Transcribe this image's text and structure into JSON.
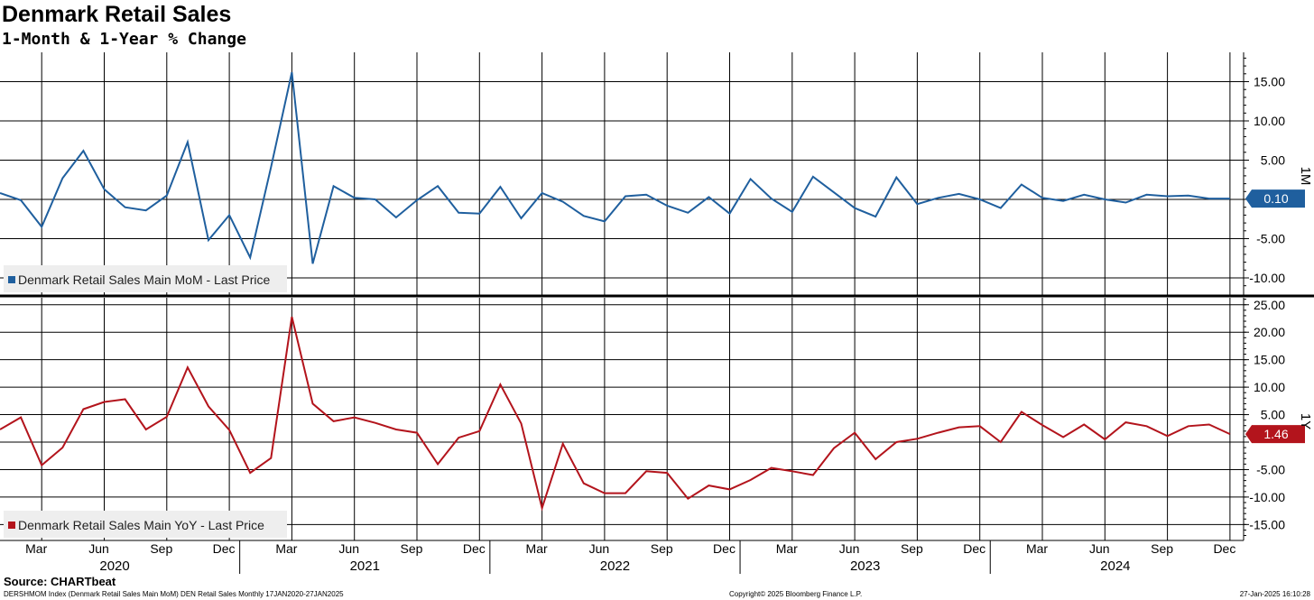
{
  "title": "Denmark Retail Sales",
  "subtitle": "1-Month & 1-Year % Change",
  "source": "Source: CHARTbeat",
  "footer": {
    "left": "DERSHMOM Index (Denmark Retail Sales Main MoM) DEN Retail Sales  Monthly 17JAN2020-27JAN2025",
    "center": "Copyright© 2025 Bloomberg Finance L.P.",
    "right": "27-Jan-2025 16:10:28"
  },
  "colors": {
    "mom": "#1f5f9e",
    "yoy": "#b3141c",
    "grid": "#000000"
  },
  "chart_data": [
    {
      "type": "line",
      "panel": "1M",
      "x_start": "2020-01",
      "x_end": "2024-12",
      "ylim": [
        -11,
        18
      ],
      "yticks": [
        15,
        10,
        5,
        0,
        -5,
        -10
      ],
      "ytick_labels": [
        "15.00",
        "10.00",
        "5.00",
        "",
        "-5.00",
        "-10.00"
      ],
      "last_value_label": "0.10",
      "series": [
        {
          "name": "Denmark Retail Sales Main MoM - Last Price",
          "values": [
            0.8,
            -0.1,
            -3.5,
            2.7,
            6.2,
            1.3,
            -1.0,
            -1.4,
            0.5,
            7.3,
            -5.2,
            -2.0,
            -7.4,
            4.1,
            16.2,
            -8.2,
            1.7,
            0.2,
            0.0,
            -2.3,
            -0.1,
            1.7,
            -1.7,
            -1.8,
            1.6,
            -2.4,
            0.8,
            -0.3,
            -2.1,
            -2.8,
            0.4,
            0.6,
            -0.8,
            -1.7,
            0.3,
            -1.8,
            2.6,
            0.1,
            -1.6,
            2.9,
            0.9,
            -1.1,
            -2.2,
            2.8,
            -0.6,
            0.2,
            0.7,
            0.0,
            -1.1,
            1.9,
            0.2,
            -0.2,
            0.6,
            0.0,
            -0.4,
            0.6,
            0.4,
            0.5,
            0.1,
            0.1
          ]
        }
      ]
    },
    {
      "type": "line",
      "panel": "1Y",
      "x_start": "2020-01",
      "x_end": "2024-12",
      "ylim": [
        -17,
        26.5
      ],
      "yticks": [
        25,
        20,
        15,
        10,
        5,
        0,
        -5,
        -10,
        -15
      ],
      "ytick_labels": [
        "25.00",
        "20.00",
        "15.00",
        "10.00",
        "5.00",
        "",
        "-5.00",
        "-10.00",
        "-15.00"
      ],
      "last_value_label": "1.46",
      "series": [
        {
          "name": "Denmark Retail Sales Main YoY - Last Price",
          "values": [
            2.3,
            4.5,
            -4.2,
            -1.0,
            6.0,
            7.3,
            7.8,
            2.3,
            4.6,
            13.6,
            6.5,
            2.2,
            -5.6,
            -2.9,
            22.8,
            7.0,
            3.8,
            4.5,
            3.5,
            2.3,
            1.7,
            -4.0,
            0.8,
            2.0,
            10.5,
            3.4,
            -12.0,
            -0.3,
            -7.5,
            -9.3,
            -9.3,
            -5.3,
            -5.6,
            -10.3,
            -7.9,
            -8.6,
            -6.9,
            -4.7,
            -5.3,
            -6.0,
            -1.1,
            1.7,
            -3.1,
            0.0,
            0.6,
            1.7,
            2.7,
            2.9,
            0.0,
            5.5,
            3.1,
            0.9,
            3.2,
            0.5,
            3.6,
            2.9,
            1.1,
            2.9,
            3.2,
            1.46
          ]
        }
      ]
    }
  ],
  "x_axis": {
    "month_labels": [
      "Mar",
      "Jun",
      "Sep",
      "Dec",
      "Mar",
      "Jun",
      "Sep",
      "Dec",
      "Mar",
      "Jun",
      "Sep",
      "Dec",
      "Mar",
      "Jun",
      "Sep",
      "Dec",
      "Mar",
      "Jun",
      "Sep",
      "Dec"
    ],
    "year_labels": [
      "2020",
      "2021",
      "2022",
      "2023",
      "2024"
    ]
  }
}
